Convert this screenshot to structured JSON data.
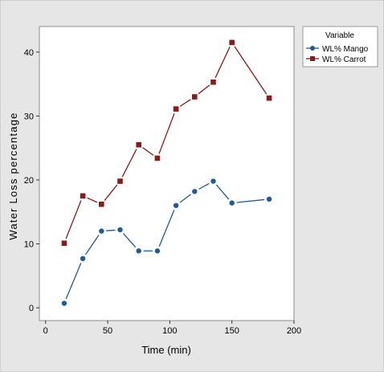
{
  "chart_data": {
    "type": "line",
    "title": "",
    "xlabel": "Time (min)",
    "ylabel": "Water Loss percentage",
    "xlim": [
      -5,
      200
    ],
    "ylim": [
      -2,
      44
    ],
    "xticks": [
      0,
      50,
      100,
      150,
      200
    ],
    "yticks": [
      0,
      10,
      20,
      30,
      40
    ],
    "grid": false,
    "legend": {
      "title": "Variable",
      "placement": "right-outside-top"
    },
    "series": [
      {
        "name": "WL% Mango",
        "color": "#1f5a96",
        "marker": "circle",
        "x": [
          15,
          30,
          45,
          60,
          75,
          90,
          105,
          120,
          135,
          150,
          180
        ],
        "y": [
          0.7,
          7.7,
          12.0,
          12.2,
          8.9,
          8.9,
          16.0,
          18.2,
          19.8,
          16.4,
          17.0
        ]
      },
      {
        "name": "WL% Carrot",
        "color": "#8b1a1a",
        "marker": "square",
        "x": [
          15,
          30,
          45,
          60,
          75,
          90,
          105,
          120,
          135,
          150,
          180
        ],
        "y": [
          10.1,
          17.5,
          16.2,
          19.8,
          25.5,
          23.4,
          31.1,
          33.0,
          35.3,
          41.5,
          32.8
        ]
      }
    ]
  }
}
